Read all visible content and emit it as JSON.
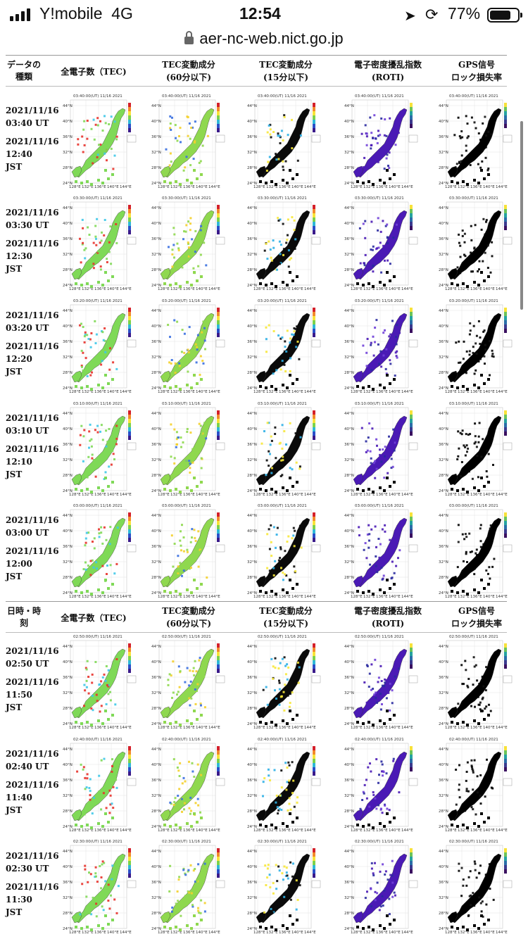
{
  "status_bar": {
    "carrier": "Y!mobile",
    "network": "4G",
    "time": "12:54",
    "battery_percent": "77%",
    "battery_level": 0.77,
    "icons": [
      "signal-bars-icon",
      "location-arrow-icon",
      "rotation-lock-icon",
      "battery-icon"
    ]
  },
  "browser": {
    "url": "aer-nc-web.nict.go.jp"
  },
  "headers": [
    {
      "first_l1": "データの",
      "first_l2": "種類",
      "c1": "全電子数（TEC)",
      "c2_l1": "TEC変動成分",
      "c2_l2": "(60分以下)",
      "c3_l1": "TEC変動成分",
      "c3_l2": "(15分以下)",
      "c4_l1": "電子密度擾乱指数",
      "c4_l2": "(ROTI)",
      "c5_l1": "GPS信号",
      "c5_l2": "ロック損失率"
    },
    {
      "first_l1": "日時・時",
      "first_l2": "刻",
      "c1": "全電子数（TEC)",
      "c2_l1": "TEC変動成分",
      "c2_l2": "(60分以下)",
      "c3_l1": "TEC変動成分",
      "c3_l2": "(15分以下)",
      "c4_l1": "電子密度擾乱指数",
      "c4_l2": "(ROTI)",
      "c5_l1": "GPS信号",
      "c5_l2": "ロック損失率"
    }
  ],
  "rows": [
    {
      "ut_date": "2021/11/16",
      "ut_time": "03:40 UT",
      "jst_date": "2021/11/16",
      "jst_time": "12:40",
      "jst": "JST",
      "map_title": "03:40:00(UT) 11/16 2021"
    },
    {
      "ut_date": "2021/11/16",
      "ut_time": "03:30 UT",
      "jst_date": "2021/11/16",
      "jst_time": "12:30",
      "jst": "JST",
      "map_title": "03:30:00(UT) 11/16 2021"
    },
    {
      "ut_date": "2021/11/16",
      "ut_time": "03:20 UT",
      "jst_date": "2021/11/16",
      "jst_time": "12:20",
      "jst": "JST",
      "map_title": "03:20:00(UT) 11/16 2021"
    },
    {
      "ut_date": "2021/11/16",
      "ut_time": "03:10 UT",
      "jst_date": "2021/11/16",
      "jst_time": "12:10",
      "jst": "JST",
      "map_title": "03:10:00(UT) 11/16 2021"
    },
    {
      "ut_date": "2021/11/16",
      "ut_time": "03:00 UT",
      "jst_date": "2021/11/16",
      "jst_time": "12:00",
      "jst": "JST",
      "map_title": "03:00:00(UT) 11/16 2021"
    },
    {
      "ut_date": "2021/11/16",
      "ut_time": "02:50 UT",
      "jst_date": "2021/11/16",
      "jst_time": "11:50",
      "jst": "JST",
      "map_title": "02:50:00(UT) 11/16 2021"
    },
    {
      "ut_date": "2021/11/16",
      "ut_time": "02:40 UT",
      "jst_date": "2021/11/16",
      "jst_time": "11:40",
      "jst": "JST",
      "map_title": "02:40:00(UT) 11/16 2021"
    },
    {
      "ut_date": "2021/11/16",
      "ut_time": "02:30 UT",
      "jst_date": "2021/11/16",
      "jst_time": "11:30",
      "jst": "JST",
      "map_title": "02:30:00(UT) 11/16 2021"
    }
  ],
  "map_axis": {
    "lat_labels": [
      "44°N",
      "40°N",
      "36°N",
      "32°N",
      "28°N",
      "24°N"
    ],
    "lon_labels": [
      "128°E",
      "132°E",
      "136°E",
      "140°E",
      "144°E"
    ]
  },
  "map_colors": {
    "tec": "#7fd957",
    "tec_hot": "#e8322b",
    "tec_cold": "#3fc8e8",
    "var60": "#8fd84f",
    "var15": "#0a0a0a",
    "roti": "#4a1ab5",
    "lockloss": "#000000"
  }
}
